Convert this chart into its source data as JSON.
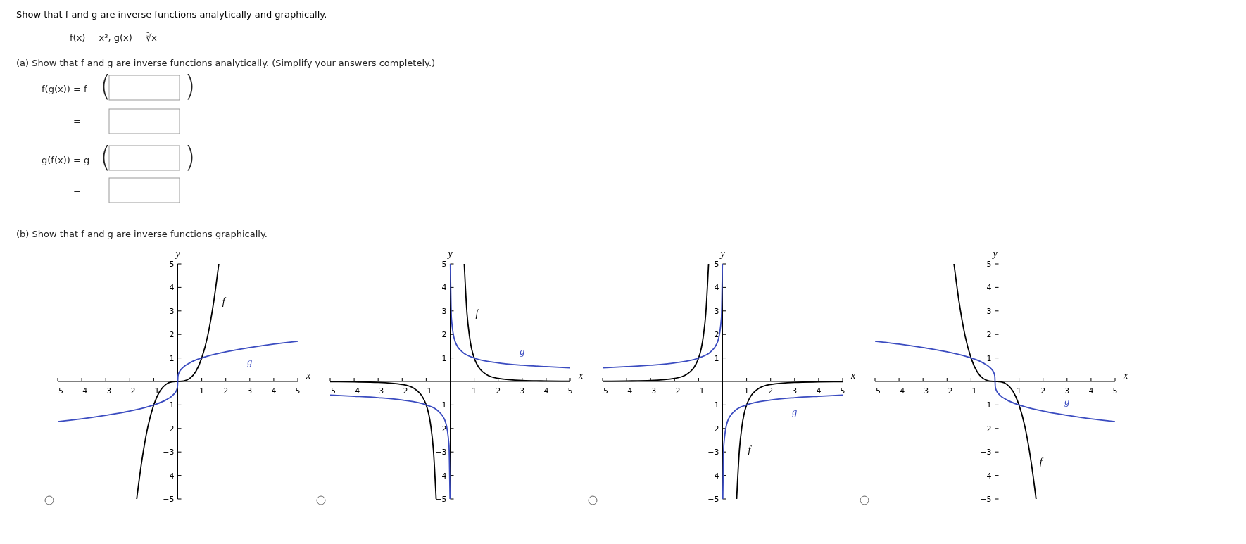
{
  "chart_data": [
    {
      "type": "line",
      "title": "Show that f and g are inverse functions analytically and graphically.",
      "xlabel": "x",
      "ylabel": "y",
      "xlim": [
        -5,
        5
      ],
      "ylim": [
        -5,
        5
      ],
      "xticks": [
        {
          "value": -5,
          "label": "−5"
        },
        {
          "value": -4,
          "label": "−4"
        },
        {
          "value": -3,
          "label": "−3"
        },
        {
          "value": -2,
          "label": "−2"
        },
        {
          "value": -1,
          "label": "−1"
        },
        1,
        2,
        3,
        4,
        5
      ],
      "yticks": [
        {
          "value": -5,
          "label": "−5"
        },
        {
          "value": -4,
          "label": "−4"
        },
        {
          "value": -3,
          "label": "−3"
        },
        {
          "value": -2,
          "label": "−2"
        },
        {
          "value": -1,
          "label": "−1"
        },
        1,
        2,
        3,
        4,
        5
      ],
      "annotations": [
        "f(x) = x³,  g(x) = ∛x",
        "(a)  Show that f and g are inverse functions analytically. (Simplify your answers completely.)",
        "f(g(x))  =  f",
        "(",
        ")",
        "=",
        "g(f(x))  =  g",
        "(",
        ")",
        "=",
        "(b)  Show that f and g are inverse functions graphically."
      ],
      "series": [
        {
          "name": "f",
          "color": "#000000",
          "x": [
            -1.71,
            -1.5,
            -1.25,
            -1,
            -0.75,
            -0.5,
            -0.25,
            0,
            0.25,
            0.5,
            0.75,
            1,
            1.25,
            1.5,
            1.71
          ],
          "values": [
            -5,
            -3.4,
            -1.95,
            -1,
            -0.42,
            -0.13,
            -0.02,
            0,
            0.02,
            0.13,
            0.42,
            1,
            1.95,
            3.4,
            5
          ]
        },
        {
          "name": "g",
          "color": "#3b4cc0",
          "x": [
            -5,
            -4,
            -3,
            -2,
            -1,
            -0.5,
            -0.2,
            -0.05,
            -0.01,
            0,
            0.01,
            0.05,
            0.2,
            0.5,
            1,
            2,
            3,
            4,
            5
          ],
          "values": [
            -1.71,
            -1.59,
            -1.44,
            -1.26,
            -1,
            -0.79,
            -0.58,
            -0.37,
            -0.22,
            0,
            0.22,
            0.37,
            0.58,
            0.79,
            1,
            1.26,
            1.44,
            1.59,
            1.71
          ]
        }
      ]
    },
    {
      "type": "line",
      "xlabel": "x",
      "ylabel": "y",
      "xlim": [
        -5,
        5
      ],
      "ylim": [
        -5,
        5
      ],
      "xticks": [
        {
          "value": -5,
          "label": "−5"
        },
        {
          "value": -4,
          "label": "−4"
        },
        {
          "value": -3,
          "label": "−3"
        },
        {
          "value": -2,
          "label": "−2"
        },
        {
          "value": -1,
          "label": "−1"
        },
        1,
        2,
        3,
        4,
        5
      ],
      "yticks": [
        {
          "value": -5,
          "label": "−5"
        },
        {
          "value": -4,
          "label": "−4"
        },
        {
          "value": -3,
          "label": "−3"
        },
        {
          "value": -2,
          "label": "−2"
        },
        {
          "value": -1,
          "label": "−1"
        },
        1,
        2,
        3,
        4,
        5
      ],
      "series": [
        {
          "name": "f",
          "color": "#000000",
          "x": [
            -5,
            -4,
            -3,
            -2,
            -1.5,
            -1,
            -0.8,
            -0.7,
            -0.585,
            0,
            0.585,
            0.7,
            0.8,
            1,
            1.5,
            2,
            3,
            4,
            5
          ],
          "values": [
            -0.01,
            -0.02,
            -0.04,
            -0.13,
            -0.3,
            -1,
            -1.95,
            -2.9,
            -5,
            null,
            5,
            2.9,
            1.95,
            1,
            0.3,
            0.13,
            0.04,
            0.02,
            0.01
          ]
        },
        {
          "name": "g",
          "color": "#3b4cc0",
          "x": [
            -5,
            -4,
            -3,
            -2,
            -1,
            -0.5,
            -0.2,
            -0.05,
            -0.008,
            0,
            0.008,
            0.05,
            0.2,
            0.5,
            1,
            2,
            3,
            4,
            5
          ],
          "values": [
            -0.58,
            -0.63,
            -0.69,
            -0.79,
            -1,
            -1.26,
            -1.71,
            -2.71,
            -5,
            null,
            5,
            2.71,
            1.71,
            1.26,
            1,
            0.79,
            0.69,
            0.63,
            0.58
          ]
        }
      ]
    },
    {
      "type": "line",
      "xlabel": "x",
      "ylabel": "y",
      "xlim": [
        -5,
        5
      ],
      "ylim": [
        -5,
        5
      ],
      "xticks": [
        {
          "value": -5,
          "label": "−5"
        },
        {
          "value": -4,
          "label": "−4"
        },
        {
          "value": -3,
          "label": "−3"
        },
        {
          "value": -2,
          "label": "−2"
        },
        {
          "value": -1,
          "label": "−1"
        },
        1,
        2,
        3,
        4,
        5
      ],
      "yticks": [
        {
          "value": -5,
          "label": "−5"
        },
        {
          "value": -4,
          "label": "−4"
        },
        {
          "value": -3,
          "label": "−3"
        },
        {
          "value": -2,
          "label": "−2"
        },
        {
          "value": -1,
          "label": "−1"
        },
        1,
        2,
        3,
        4,
        5
      ],
      "series": [
        {
          "name": "f",
          "color": "#000000",
          "x": [
            -5,
            -4,
            -3,
            -2,
            -1.5,
            -1,
            -0.8,
            -0.7,
            -0.585,
            0,
            0.585,
            0.7,
            0.8,
            1,
            1.5,
            2,
            3,
            4,
            5
          ],
          "values": [
            0.01,
            0.02,
            0.04,
            0.13,
            0.3,
            1,
            1.95,
            2.9,
            5,
            null,
            -5,
            -2.9,
            -1.95,
            -1,
            -0.3,
            -0.13,
            -0.04,
            -0.02,
            -0.01
          ]
        },
        {
          "name": "g",
          "color": "#3b4cc0",
          "x": [
            -5,
            -4,
            -3,
            -2,
            -1,
            -0.5,
            -0.2,
            -0.05,
            -0.008,
            0,
            0.008,
            0.05,
            0.2,
            0.5,
            1,
            2,
            3,
            4,
            5
          ],
          "values": [
            0.58,
            0.63,
            0.69,
            0.79,
            1,
            1.26,
            1.71,
            2.71,
            5,
            null,
            -5,
            -2.71,
            -1.71,
            -1.26,
            -1,
            -0.79,
            -0.69,
            -0.63,
            -0.58
          ]
        }
      ]
    },
    {
      "type": "line",
      "xlabel": "x",
      "ylabel": "y",
      "xlim": [
        -5,
        5
      ],
      "ylim": [
        -5,
        5
      ],
      "xticks": [
        {
          "value": -5,
          "label": "−5"
        },
        {
          "value": -4,
          "label": "−4"
        },
        {
          "value": -3,
          "label": "−3"
        },
        {
          "value": -2,
          "label": "−2"
        },
        {
          "value": -1,
          "label": "−1"
        },
        1,
        2,
        3,
        4,
        5
      ],
      "yticks": [
        {
          "value": -5,
          "label": "−5"
        },
        {
          "value": -4,
          "label": "−4"
        },
        {
          "value": -3,
          "label": "−3"
        },
        {
          "value": -2,
          "label": "−2"
        },
        {
          "value": -1,
          "label": "−1"
        },
        1,
        2,
        3,
        4,
        5
      ],
      "series": [
        {
          "name": "f",
          "color": "#000000",
          "x": [
            -1.71,
            -1.5,
            -1.25,
            -1,
            -0.75,
            -0.5,
            -0.25,
            0,
            0.25,
            0.5,
            0.75,
            1,
            1.25,
            1.5,
            1.71
          ],
          "values": [
            5,
            3.4,
            1.95,
            1,
            0.42,
            0.13,
            0.02,
            0,
            -0.02,
            -0.13,
            -0.42,
            -1,
            -1.95,
            -3.4,
            -5
          ]
        },
        {
          "name": "g",
          "color": "#3b4cc0",
          "x": [
            -5,
            -4,
            -3,
            -2,
            -1,
            -0.5,
            -0.2,
            -0.05,
            -0.01,
            0,
            0.01,
            0.05,
            0.2,
            0.5,
            1,
            2,
            3,
            4,
            5
          ],
          "values": [
            1.71,
            1.59,
            1.44,
            1.26,
            1,
            0.79,
            0.58,
            0.37,
            0.22,
            0,
            -0.22,
            -0.37,
            -0.58,
            -0.79,
            -1,
            -1.26,
            -1.44,
            -1.59,
            -1.71
          ]
        }
      ]
    }
  ]
}
